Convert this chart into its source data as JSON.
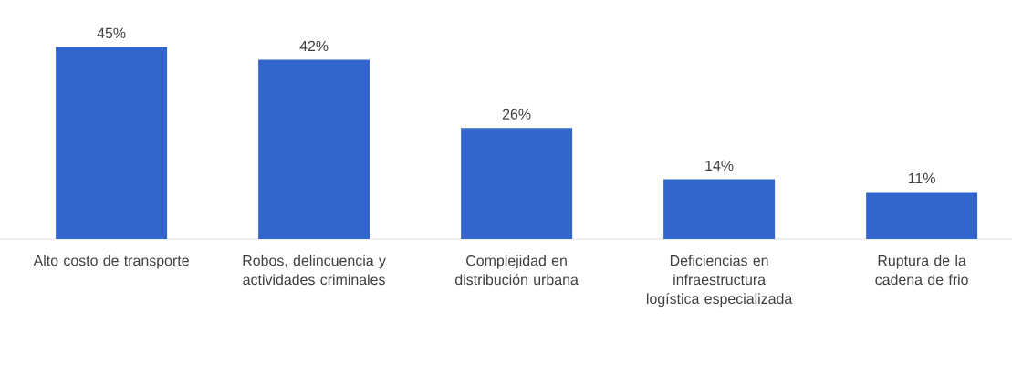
{
  "chart_data": {
    "type": "bar",
    "categories": [
      "Alto costo de transporte",
      "Robos, delincuencia y actividades criminales",
      "Complejidad en distribución urbana",
      "Deficiencias en infraestructura logística especializada",
      "Ruptura de la cadena de frio"
    ],
    "values": [
      45,
      42,
      26,
      14,
      11
    ],
    "value_labels": [
      "45%",
      "42%",
      "26%",
      "14%",
      "11%"
    ],
    "color": "#3366cc"
  }
}
